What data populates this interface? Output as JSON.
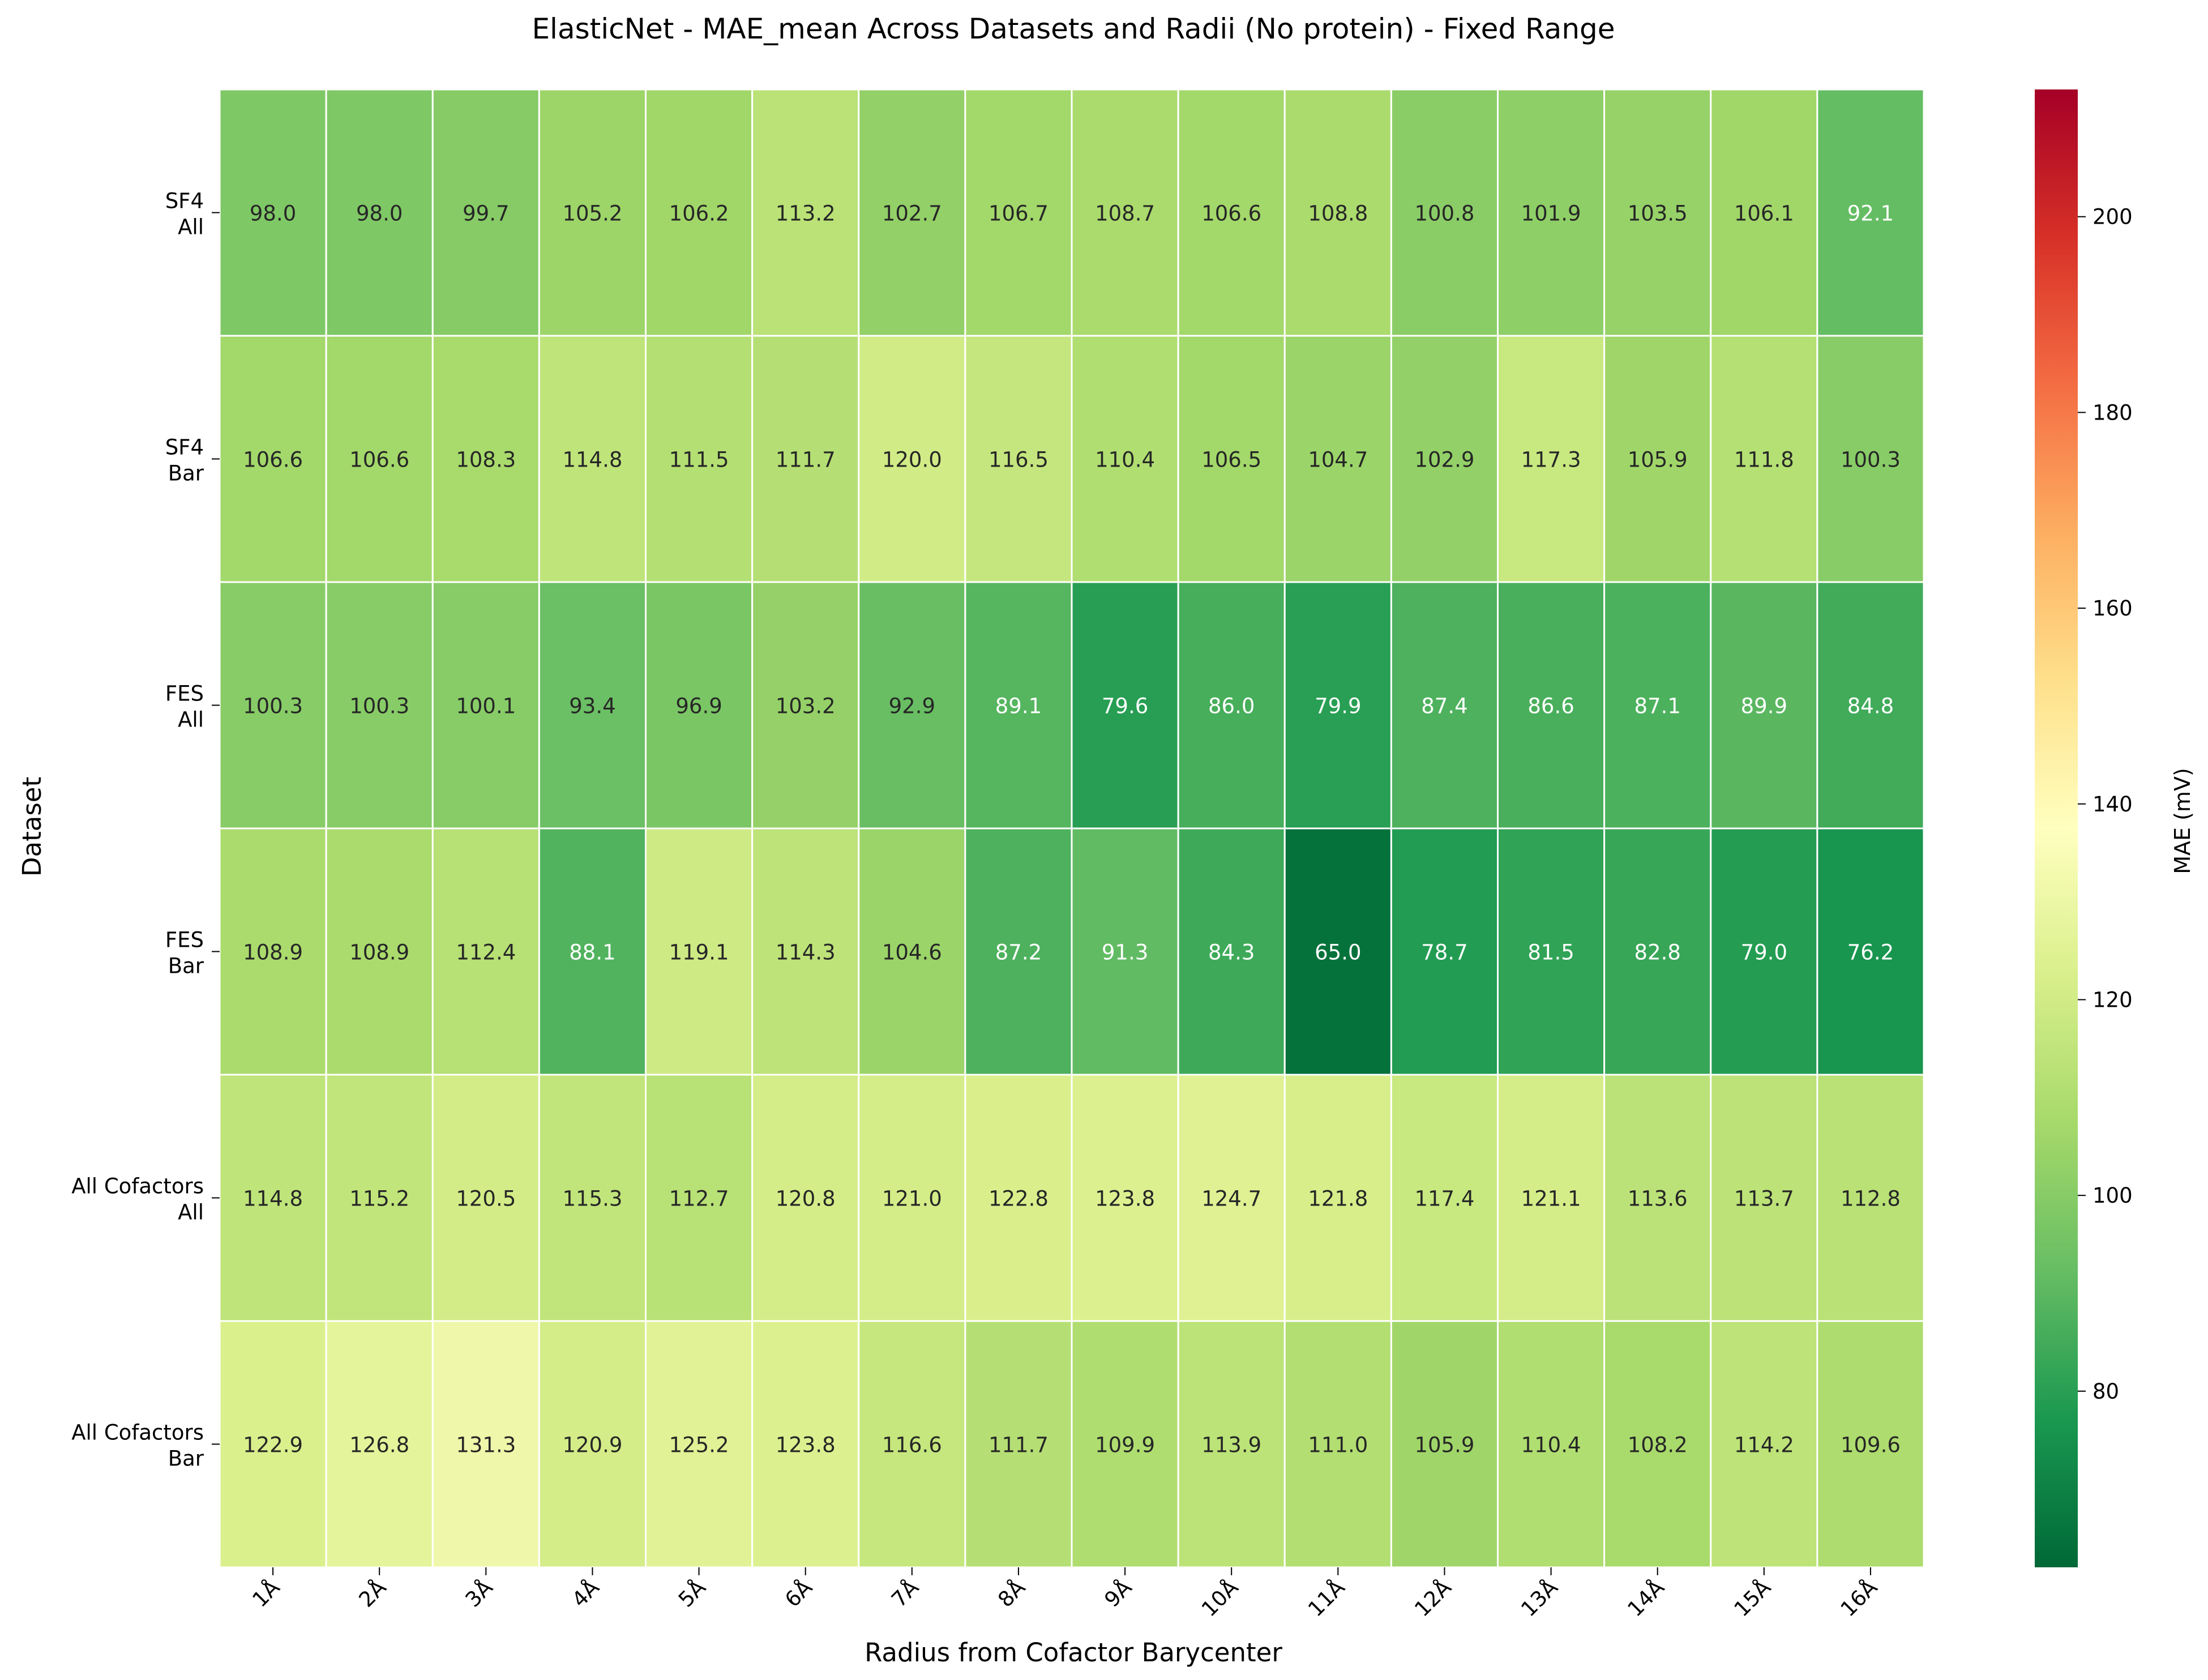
{
  "chart_data": {
    "type": "heatmap",
    "title": "ElasticNet - MAE_mean Across Datasets and Radii (No protein) - Fixed Range",
    "xlabel": "Radius from Cofactor Barycenter",
    "ylabel": "Dataset",
    "x_categories": [
      "1Å",
      "2Å",
      "3Å",
      "4Å",
      "5Å",
      "6Å",
      "7Å",
      "8Å",
      "9Å",
      "10Å",
      "11Å",
      "12Å",
      "13Å",
      "14Å",
      "15Å",
      "16Å"
    ],
    "y_categories": [
      [
        "SF4",
        "All"
      ],
      [
        "SF4",
        "Bar"
      ],
      [
        "FES",
        "All"
      ],
      [
        "FES",
        "Bar"
      ],
      [
        "All Cofactors",
        "All"
      ],
      [
        "All Cofactors",
        "Bar"
      ]
    ],
    "values": [
      [
        98.0,
        98.0,
        99.7,
        105.2,
        106.2,
        113.2,
        102.7,
        106.7,
        108.7,
        106.6,
        108.8,
        100.8,
        101.9,
        103.5,
        106.1,
        92.1
      ],
      [
        106.6,
        106.6,
        108.3,
        114.8,
        111.5,
        111.7,
        120.0,
        116.5,
        110.4,
        106.5,
        104.7,
        102.9,
        117.3,
        105.9,
        111.8,
        100.3
      ],
      [
        100.3,
        100.3,
        100.1,
        93.4,
        96.9,
        103.2,
        92.9,
        89.1,
        79.6,
        86.0,
        79.9,
        87.4,
        86.6,
        87.1,
        89.9,
        84.8
      ],
      [
        108.9,
        108.9,
        112.4,
        88.1,
        119.1,
        114.3,
        104.6,
        87.2,
        91.3,
        84.3,
        65.0,
        78.7,
        81.5,
        82.8,
        79.0,
        76.2
      ],
      [
        114.8,
        115.2,
        120.5,
        115.3,
        112.7,
        120.8,
        121.0,
        122.8,
        123.8,
        124.7,
        121.8,
        117.4,
        121.1,
        113.6,
        113.7,
        112.8
      ],
      [
        122.9,
        126.8,
        131.3,
        120.9,
        125.2,
        123.8,
        116.6,
        111.7,
        109.9,
        113.9,
        111.0,
        105.9,
        110.4,
        108.2,
        114.2,
        109.6
      ]
    ],
    "colorbar": {
      "label": "MAE (mV)",
      "range": [
        62,
        213
      ],
      "ticks": [
        80,
        100,
        120,
        140,
        160,
        180,
        200
      ],
      "colormap": "RdYlGn_r"
    },
    "value_format": "one decimal",
    "grid": "white cell borders"
  }
}
